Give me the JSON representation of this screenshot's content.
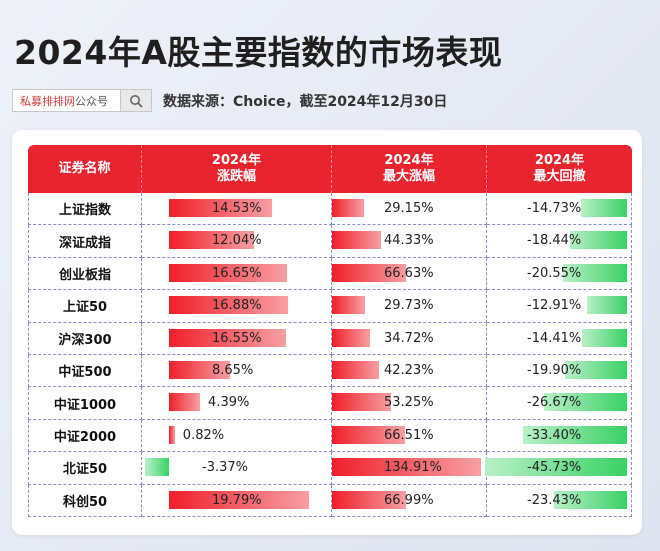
{
  "title": "2024年A股主要指数的市场表现",
  "search_box": {
    "label_red": "私募排排网",
    "label_gray": "公众号",
    "icon": "search-icon"
  },
  "source": "数据来源：Choice，截至2024年12月30日",
  "colors": {
    "header": "#e8242f",
    "positive": "#ef1f2a",
    "negative": "#3ad166"
  },
  "table": {
    "headers": [
      "证券名称",
      "2024年\n涨跌幅",
      "2024年\n最大涨幅",
      "2024年\n最大回撤"
    ],
    "rows": [
      {
        "name": "上证指数",
        "change": "14.53%",
        "change_value": 14.53,
        "max_gain": "29.15%",
        "max_gain_value": 29.15,
        "max_dd": "-14.73%",
        "max_dd_value": -14.73
      },
      {
        "name": "深证成指",
        "change": "12.04%",
        "change_value": 12.04,
        "max_gain": "44.33%",
        "max_gain_value": 44.33,
        "max_dd": "-18.44%",
        "max_dd_value": -18.44
      },
      {
        "name": "创业板指",
        "change": "16.65%",
        "change_value": 16.65,
        "max_gain": "66.63%",
        "max_gain_value": 66.63,
        "max_dd": "-20.55%",
        "max_dd_value": -20.55
      },
      {
        "name": "上证50",
        "change": "16.88%",
        "change_value": 16.88,
        "max_gain": "29.73%",
        "max_gain_value": 29.73,
        "max_dd": "-12.91%",
        "max_dd_value": -12.91
      },
      {
        "name": "沪深300",
        "change": "16.55%",
        "change_value": 16.55,
        "max_gain": "34.72%",
        "max_gain_value": 34.72,
        "max_dd": "-14.41%",
        "max_dd_value": -14.41
      },
      {
        "name": "中证500",
        "change": "8.65%",
        "change_value": 8.65,
        "max_gain": "42.23%",
        "max_gain_value": 42.23,
        "max_dd": "-19.90%",
        "max_dd_value": -19.9
      },
      {
        "name": "中证1000",
        "change": "4.39%",
        "change_value": 4.39,
        "max_gain": "53.25%",
        "max_gain_value": 53.25,
        "max_dd": "-26.67%",
        "max_dd_value": -26.67
      },
      {
        "name": "中证2000",
        "change": "0.82%",
        "change_value": 0.82,
        "max_gain": "66.51%",
        "max_gain_value": 66.51,
        "max_dd": "-33.40%",
        "max_dd_value": -33.4
      },
      {
        "name": "北证50",
        "change": "-3.37%",
        "change_value": -3.37,
        "max_gain": "134.91%",
        "max_gain_value": 134.91,
        "max_dd": "-45.73%",
        "max_dd_value": -45.73
      },
      {
        "name": "科创50",
        "change": "19.79%",
        "change_value": 19.79,
        "max_gain": "66.99%",
        "max_gain_value": 66.99,
        "max_dd": "-23.43%",
        "max_dd_value": -23.43
      }
    ]
  }
}
